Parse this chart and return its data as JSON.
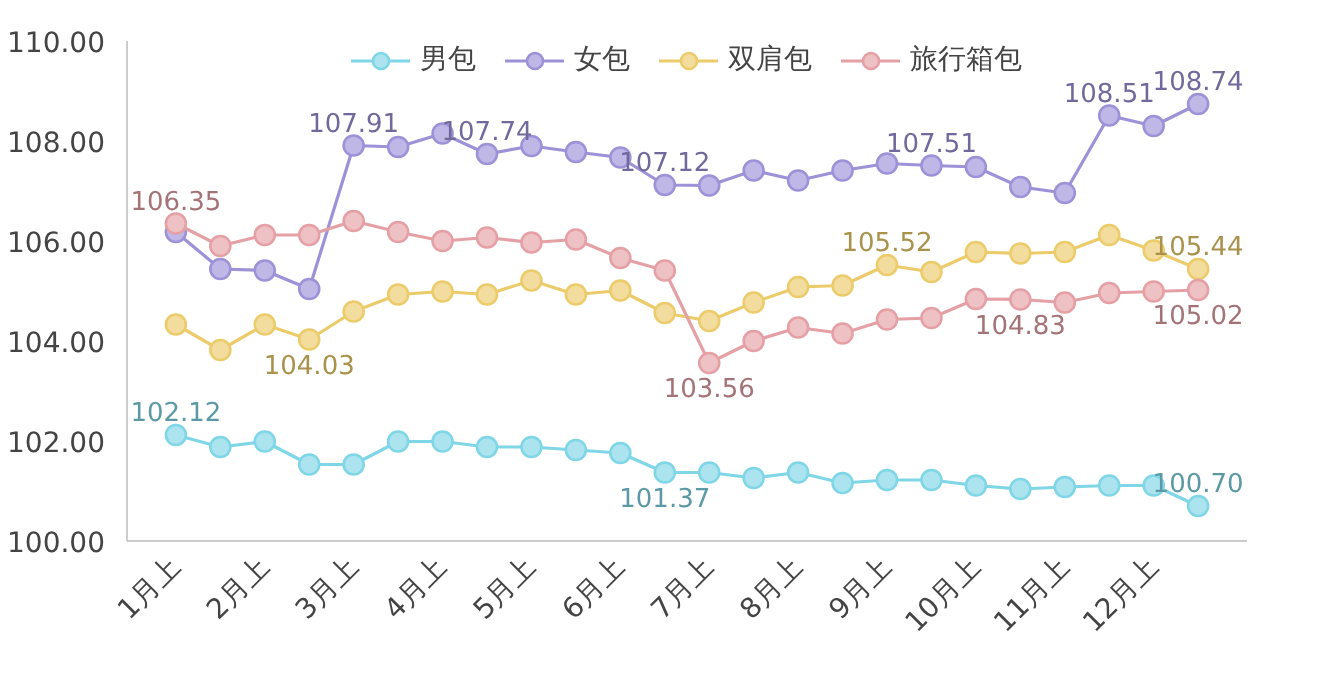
{
  "chart_data": {
    "type": "line",
    "categories": [
      "1月上",
      null,
      "2月上",
      null,
      "3月上",
      null,
      "4月上",
      null,
      "5月上",
      null,
      "6月上",
      null,
      "7月上",
      null,
      "8月上",
      null,
      "9月上",
      null,
      "10月上",
      null,
      "11月上",
      null,
      "12月上",
      null
    ],
    "series": [
      {
        "name": "男包",
        "color": "#7fd6e6",
        "values": [
          102.12,
          101.88,
          101.99,
          101.53,
          101.53,
          101.99,
          101.99,
          101.88,
          101.88,
          101.82,
          101.76,
          101.37,
          101.37,
          101.26,
          101.37,
          101.16,
          101.22,
          101.22,
          101.11,
          101.04,
          101.08,
          101.11,
          101.11,
          100.7
        ],
        "value_labels": [
          "102.12",
          null,
          null,
          null,
          null,
          null,
          null,
          null,
          null,
          null,
          null,
          "101.37",
          null,
          null,
          null,
          null,
          null,
          null,
          null,
          null,
          null,
          null,
          null,
          "100.70"
        ]
      },
      {
        "name": "女包",
        "color": "#9d91d8",
        "values": [
          106.18,
          105.44,
          105.41,
          105.04,
          107.91,
          107.88,
          108.15,
          107.74,
          107.9,
          107.78,
          107.67,
          107.12,
          107.11,
          107.41,
          107.21,
          107.41,
          107.55,
          107.51,
          107.48,
          107.08,
          106.96,
          108.51,
          108.3,
          108.74
        ],
        "value_labels": [
          null,
          null,
          null,
          null,
          "107.91",
          null,
          null,
          "107.74",
          null,
          null,
          null,
          "107.12",
          null,
          null,
          null,
          null,
          null,
          "107.51",
          null,
          null,
          null,
          "108.51",
          null,
          "108.74"
        ]
      },
      {
        "name": "双肩包",
        "color": "#eccb6a",
        "values": [
          104.33,
          103.82,
          104.33,
          104.03,
          104.59,
          104.93,
          104.99,
          104.93,
          105.21,
          104.93,
          105.01,
          104.56,
          104.4,
          104.77,
          105.08,
          105.11,
          105.52,
          105.38,
          105.78,
          105.75,
          105.78,
          106.12,
          105.81,
          105.44
        ],
        "value_labels": [
          null,
          null,
          null,
          "104.03",
          null,
          null,
          null,
          null,
          null,
          null,
          null,
          null,
          null,
          null,
          null,
          null,
          "105.52",
          null,
          null,
          null,
          null,
          null,
          null,
          "105.44"
        ]
      },
      {
        "name": "旅行箱包",
        "color": "#e5a0a6",
        "values": [
          106.35,
          105.9,
          106.12,
          106.12,
          106.4,
          106.18,
          106.0,
          106.07,
          105.97,
          106.03,
          105.66,
          105.41,
          103.56,
          104.0,
          104.27,
          104.15,
          104.43,
          104.46,
          104.84,
          104.83,
          104.77,
          104.96,
          104.99,
          105.02
        ],
        "value_labels": [
          "106.35",
          null,
          null,
          null,
          null,
          null,
          null,
          null,
          null,
          null,
          null,
          null,
          "103.56",
          null,
          null,
          null,
          null,
          null,
          null,
          "104.83",
          null,
          null,
          null,
          "105.02"
        ]
      }
    ],
    "ylim": [
      100,
      110
    ],
    "yticks": [
      {
        "value": 100,
        "label": "100.00"
      },
      {
        "value": 102,
        "label": "102.00"
      },
      {
        "value": 104,
        "label": "104.00"
      },
      {
        "value": 106,
        "label": "106.00"
      },
      {
        "value": 108,
        "label": "108.00"
      },
      {
        "value": 110,
        "label": "110.00"
      }
    ],
    "grid": false,
    "legend": "top",
    "marker": "circle",
    "line_style": "solid"
  }
}
